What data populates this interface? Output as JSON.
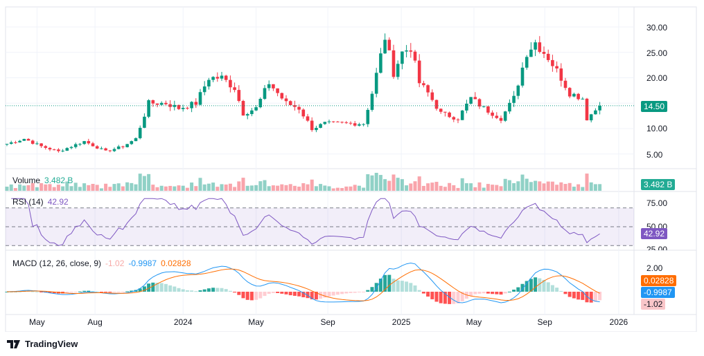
{
  "chart_data": {
    "type": "candlestick",
    "interval": "weekly",
    "close_keypoints": [
      [
        0,
        7
      ],
      [
        4,
        8
      ],
      [
        8,
        6.5
      ],
      [
        12,
        5.5
      ],
      [
        18,
        7.5
      ],
      [
        23,
        5.5
      ],
      [
        27,
        6.5
      ],
      [
        30,
        8
      ],
      [
        33,
        15
      ],
      [
        37,
        15
      ],
      [
        40,
        14
      ],
      [
        44,
        15
      ],
      [
        47,
        20
      ],
      [
        50,
        20
      ],
      [
        53,
        18
      ],
      [
        55,
        13
      ],
      [
        58,
        14
      ],
      [
        61,
        19
      ],
      [
        65,
        15
      ],
      [
        68,
        14
      ],
      [
        71,
        10
      ],
      [
        74,
        11
      ],
      [
        79,
        11
      ],
      [
        83,
        11
      ],
      [
        85,
        17
      ],
      [
        88,
        28
      ],
      [
        90,
        21
      ],
      [
        92,
        25
      ],
      [
        94,
        26
      ],
      [
        96,
        19
      ],
      [
        98,
        17
      ],
      [
        101,
        13
      ],
      [
        105,
        12
      ],
      [
        108,
        16
      ],
      [
        111,
        14
      ],
      [
        115,
        12
      ],
      [
        118,
        16
      ],
      [
        121,
        25
      ],
      [
        123,
        27
      ],
      [
        126,
        24
      ],
      [
        129,
        20
      ],
      [
        131,
        17
      ],
      [
        134,
        16
      ],
      [
        135,
        12
      ],
      [
        138,
        14.5
      ]
    ],
    "price_axis": {
      "ticks": [
        "30.00",
        "25.00",
        "20.00",
        "10.00",
        "5.00"
      ],
      "tick_values": [
        30,
        25,
        20,
        10,
        5
      ],
      "range": [
        2,
        33
      ]
    },
    "last_price": "14.50",
    "x_ticks": [
      {
        "label": "May",
        "week": 7
      },
      {
        "label": "Aug",
        "week": 20.5
      },
      {
        "label": "2024",
        "week": 41
      },
      {
        "label": "May",
        "week": 58
      },
      {
        "label": "Sep",
        "week": 74.7
      },
      {
        "label": "2025",
        "week": 91.8
      },
      {
        "label": "May",
        "week": 108.7
      },
      {
        "label": "Sep",
        "week": 125.2
      },
      {
        "label": "2026",
        "week": 142.4
      }
    ],
    "volume": {
      "label": "Volume",
      "value": "3.482 B"
    },
    "rsi": {
      "label": "RSI (14)",
      "value": "42.92",
      "ticks": [
        "75.00",
        "50.00",
        "25.00"
      ]
    },
    "macd": {
      "label": "MACD (12, 26, close, 9)",
      "hist": "-1.02",
      "macd": "-0.9987",
      "signal": "0.02828",
      "tick": "2.00"
    },
    "colors": {
      "up": "#089981",
      "down": "#f23645",
      "rsi": "#7e57c2",
      "macd": "#2196f3",
      "signal": "#ff6d00"
    }
  },
  "footer": {
    "brand": "TradingView"
  }
}
